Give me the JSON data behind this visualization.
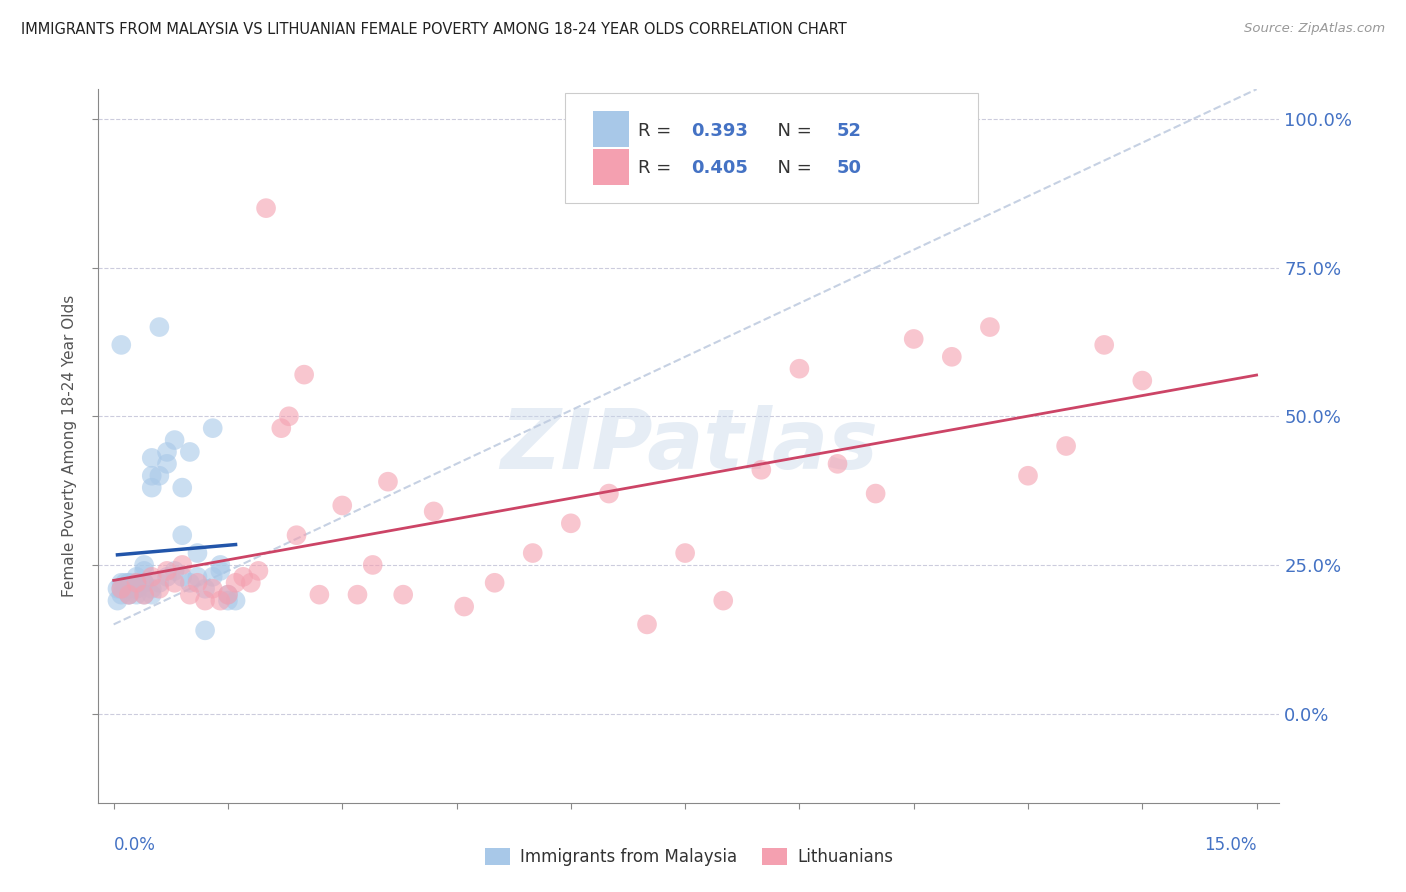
{
  "title": "IMMIGRANTS FROM MALAYSIA VS LITHUANIAN FEMALE POVERTY AMONG 18-24 YEAR OLDS CORRELATION CHART",
  "source": "Source: ZipAtlas.com",
  "ylabel": "Female Poverty Among 18-24 Year Olds",
  "legend_label1": "Immigrants from Malaysia",
  "legend_label2": "Lithuanians",
  "legend_r1": "0.393",
  "legend_n1": "52",
  "legend_r2": "0.405",
  "legend_n2": "50",
  "color_blue": "#a8c8e8",
  "color_pink": "#f4a0b0",
  "color_blue_line": "#2255aa",
  "color_pink_line": "#cc4466",
  "color_dashed": "#c0cce0",
  "axis_label_color": "#4472c4",
  "background_color": "#ffffff",
  "blue_x": [
    0.0005,
    0.001,
    0.001,
    0.0015,
    0.002,
    0.002,
    0.002,
    0.003,
    0.003,
    0.003,
    0.003,
    0.004,
    0.004,
    0.004,
    0.005,
    0.005,
    0.005,
    0.006,
    0.006,
    0.007,
    0.007,
    0.008,
    0.009,
    0.009,
    0.01,
    0.011,
    0.012,
    0.013,
    0.014,
    0.015,
    0.0005,
    0.001,
    0.001,
    0.002,
    0.002,
    0.003,
    0.003,
    0.004,
    0.004,
    0.005,
    0.005,
    0.006,
    0.007,
    0.008,
    0.009,
    0.01,
    0.011,
    0.012,
    0.013,
    0.014,
    0.015,
    0.016
  ],
  "blue_y": [
    0.21,
    0.2,
    0.22,
    0.22,
    0.21,
    0.2,
    0.22,
    0.21,
    0.23,
    0.2,
    0.22,
    0.24,
    0.22,
    0.25,
    0.43,
    0.4,
    0.38,
    0.65,
    0.4,
    0.44,
    0.42,
    0.46,
    0.3,
    0.38,
    0.44,
    0.27,
    0.14,
    0.48,
    0.25,
    0.19,
    0.19,
    0.21,
    0.62,
    0.2,
    0.22,
    0.22,
    0.21,
    0.2,
    0.22,
    0.2,
    0.21,
    0.22,
    0.23,
    0.24,
    0.23,
    0.22,
    0.23,
    0.21,
    0.23,
    0.24,
    0.2,
    0.19
  ],
  "pink_x": [
    0.001,
    0.002,
    0.003,
    0.004,
    0.005,
    0.006,
    0.007,
    0.008,
    0.009,
    0.01,
    0.011,
    0.012,
    0.013,
    0.014,
    0.015,
    0.016,
    0.017,
    0.018,
    0.019,
    0.02,
    0.022,
    0.023,
    0.024,
    0.025,
    0.027,
    0.03,
    0.032,
    0.034,
    0.036,
    0.038,
    0.042,
    0.046,
    0.05,
    0.055,
    0.06,
    0.065,
    0.07,
    0.075,
    0.08,
    0.085,
    0.09,
    0.095,
    0.1,
    0.105,
    0.11,
    0.115,
    0.12,
    0.125,
    0.13,
    0.135
  ],
  "pink_y": [
    0.21,
    0.2,
    0.22,
    0.2,
    0.23,
    0.21,
    0.24,
    0.22,
    0.25,
    0.2,
    0.22,
    0.19,
    0.21,
    0.19,
    0.2,
    0.22,
    0.23,
    0.22,
    0.24,
    0.85,
    0.48,
    0.5,
    0.3,
    0.57,
    0.2,
    0.35,
    0.2,
    0.25,
    0.39,
    0.2,
    0.34,
    0.18,
    0.22,
    0.27,
    0.32,
    0.37,
    0.15,
    0.27,
    0.19,
    0.41,
    0.58,
    0.42,
    0.37,
    0.63,
    0.6,
    0.65,
    0.4,
    0.45,
    0.62,
    0.56
  ],
  "xlim_data": [
    0.0,
    0.15
  ],
  "ylim_data": [
    -0.15,
    1.05
  ],
  "yticks": [
    0.0,
    0.25,
    0.5,
    0.75,
    1.0
  ],
  "ytick_labels_right": [
    "0.0%",
    "25.0%",
    "50.0%",
    "75.0%",
    "100.0%"
  ],
  "xtick_positions": [
    0.0,
    0.015,
    0.03,
    0.045,
    0.06,
    0.075,
    0.09,
    0.105,
    0.12,
    0.135,
    0.15
  ]
}
